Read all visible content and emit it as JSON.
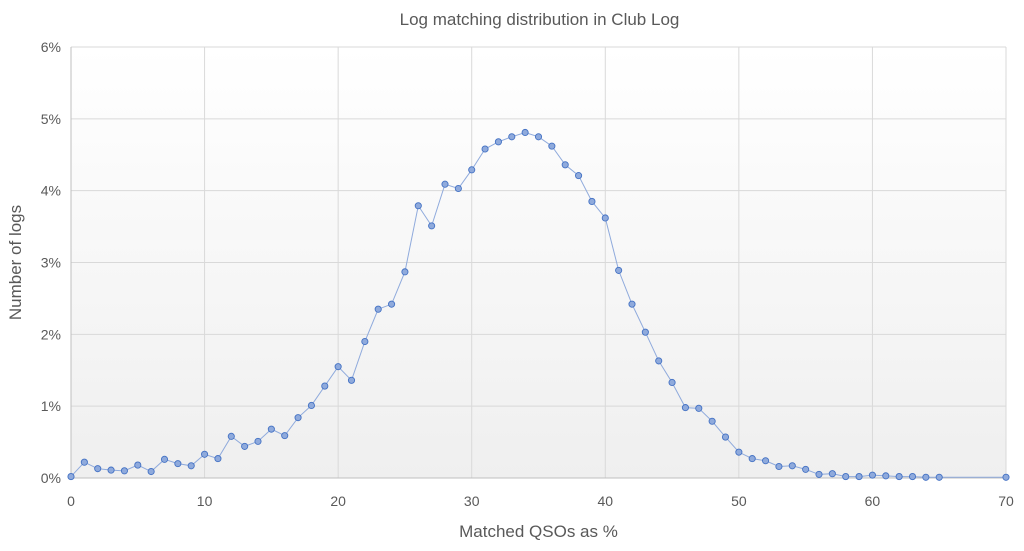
{
  "chart_data": {
    "type": "scatter",
    "title": "Log matching distribution in Club Log",
    "xlabel": "Matched QSOs as %",
    "ylabel": "Number of logs",
    "xlim": [
      0,
      70
    ],
    "ylim": [
      0,
      6
    ],
    "x_ticks": [
      "0",
      "10",
      "20",
      "30",
      "40",
      "50",
      "60",
      "70"
    ],
    "y_ticks": [
      "0%",
      "1%",
      "2%",
      "3%",
      "4%",
      "5%",
      "6%"
    ],
    "grid": true,
    "legend": "none",
    "series": [
      {
        "color": "#8faadc",
        "marker_fill": "#8faadc",
        "marker_edge": "#4472c4",
        "points": [
          [
            0,
            0.02
          ],
          [
            1,
            0.22
          ],
          [
            2,
            0.13
          ],
          [
            3,
            0.11
          ],
          [
            4,
            0.1
          ],
          [
            5,
            0.18
          ],
          [
            6,
            0.09
          ],
          [
            7,
            0.26
          ],
          [
            8,
            0.2
          ],
          [
            9,
            0.17
          ],
          [
            10,
            0.33
          ],
          [
            11,
            0.27
          ],
          [
            12,
            0.58
          ],
          [
            13,
            0.44
          ],
          [
            14,
            0.51
          ],
          [
            15,
            0.68
          ],
          [
            16,
            0.59
          ],
          [
            17,
            0.84
          ],
          [
            18,
            1.01
          ],
          [
            19,
            1.28
          ],
          [
            20,
            1.55
          ],
          [
            21,
            1.36
          ],
          [
            22,
            1.9
          ],
          [
            23,
            2.35
          ],
          [
            24,
            2.42
          ],
          [
            25,
            2.87
          ],
          [
            26,
            3.79
          ],
          [
            27,
            3.51
          ],
          [
            28,
            4.09
          ],
          [
            29,
            4.03
          ],
          [
            30,
            4.29
          ],
          [
            31,
            4.58
          ],
          [
            32,
            4.68
          ],
          [
            33,
            4.75
          ],
          [
            34,
            4.81
          ],
          [
            35,
            4.75
          ],
          [
            36,
            4.62
          ],
          [
            37,
            4.36
          ],
          [
            38,
            4.21
          ],
          [
            39,
            3.85
          ],
          [
            40,
            3.62
          ],
          [
            41,
            2.89
          ],
          [
            42,
            2.42
          ],
          [
            43,
            2.03
          ],
          [
            44,
            1.63
          ],
          [
            45,
            1.33
          ],
          [
            46,
            0.98
          ],
          [
            47,
            0.97
          ],
          [
            48,
            0.79
          ],
          [
            49,
            0.57
          ],
          [
            50,
            0.36
          ],
          [
            51,
            0.27
          ],
          [
            52,
            0.24
          ],
          [
            53,
            0.16
          ],
          [
            54,
            0.17
          ],
          [
            55,
            0.12
          ],
          [
            56,
            0.05
          ],
          [
            57,
            0.06
          ],
          [
            58,
            0.02
          ],
          [
            59,
            0.02
          ],
          [
            60,
            0.04
          ],
          [
            61,
            0.03
          ],
          [
            62,
            0.02
          ],
          [
            63,
            0.02
          ],
          [
            64,
            0.01
          ],
          [
            65,
            0.01
          ],
          [
            70,
            0.01
          ]
        ]
      }
    ]
  }
}
